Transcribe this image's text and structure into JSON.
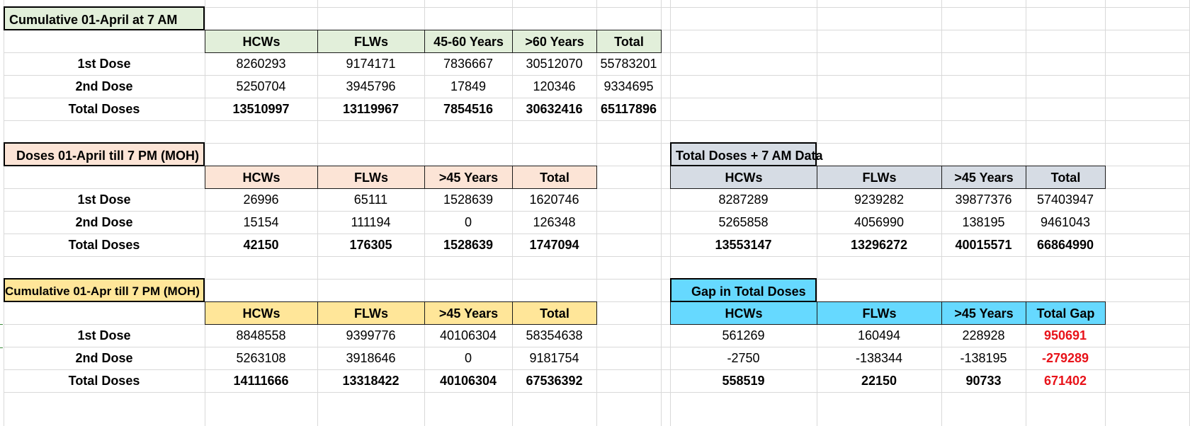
{
  "colors": {
    "green_header": "#e2efda",
    "peach_header": "#fce4d6",
    "gray_header": "#d6dce4",
    "yellow_header": "#ffe699",
    "cyan_header": "#66d9ff",
    "gap_red": "#e8131a"
  },
  "row_labels": {
    "dose1": "1st Dose",
    "dose2": "2nd Dose",
    "total": "Total Doses"
  },
  "tables": {
    "cumulative_7am": {
      "title": "Cumulative 01-April at 7 AM",
      "headers": [
        "HCWs",
        "FLWs",
        "45-60 Years",
        ">60 Years",
        "Total"
      ],
      "rows": [
        [
          "8260293",
          "9174171",
          "7836667",
          "30512070",
          "55783201"
        ],
        [
          "5250704",
          "3945796",
          "17849",
          "120346",
          "9334695"
        ],
        [
          "13510997",
          "13119967",
          "7854516",
          "30632416",
          "65117896"
        ]
      ]
    },
    "doses_7pm": {
      "title": "Doses 01-April till 7 PM (MOH)",
      "headers": [
        "HCWs",
        "FLWs",
        ">45 Years",
        "Total"
      ],
      "rows": [
        [
          "26996",
          "65111",
          "1528639",
          "1620746"
        ],
        [
          "15154",
          "111194",
          "0",
          "126348"
        ],
        [
          "42150",
          "176305",
          "1528639",
          "1747094"
        ]
      ]
    },
    "total_plus_7am": {
      "title": "Total Doses + 7 AM Data",
      "headers": [
        "HCWs",
        "FLWs",
        ">45 Years",
        "Total"
      ],
      "rows": [
        [
          "8287289",
          "9239282",
          "39877376",
          "57403947"
        ],
        [
          "5265858",
          "4056990",
          "138195",
          "9461043"
        ],
        [
          "13553147",
          "13296272",
          "40015571",
          "66864990"
        ]
      ]
    },
    "cumulative_7pm": {
      "title": "Cumulative 01-Apr till 7 PM (MOH)",
      "headers": [
        "HCWs",
        "FLWs",
        ">45 Years",
        "Total"
      ],
      "rows": [
        [
          "8848558",
          "9399776",
          "40106304",
          "58354638"
        ],
        [
          "5263108",
          "3918646",
          "0",
          "9181754"
        ],
        [
          "14111666",
          "13318422",
          "40106304",
          "67536392"
        ]
      ]
    },
    "gap": {
      "title": "Gap in Total Doses",
      "headers": [
        "HCWs",
        "FLWs",
        ">45 Years",
        "Total Gap"
      ],
      "rows": [
        [
          "561269",
          "160494",
          "228928",
          "950691"
        ],
        [
          "-2750",
          "-138344",
          "-138195",
          "-279289"
        ],
        [
          "558519",
          "22150",
          "90733",
          "671402"
        ]
      ]
    }
  }
}
